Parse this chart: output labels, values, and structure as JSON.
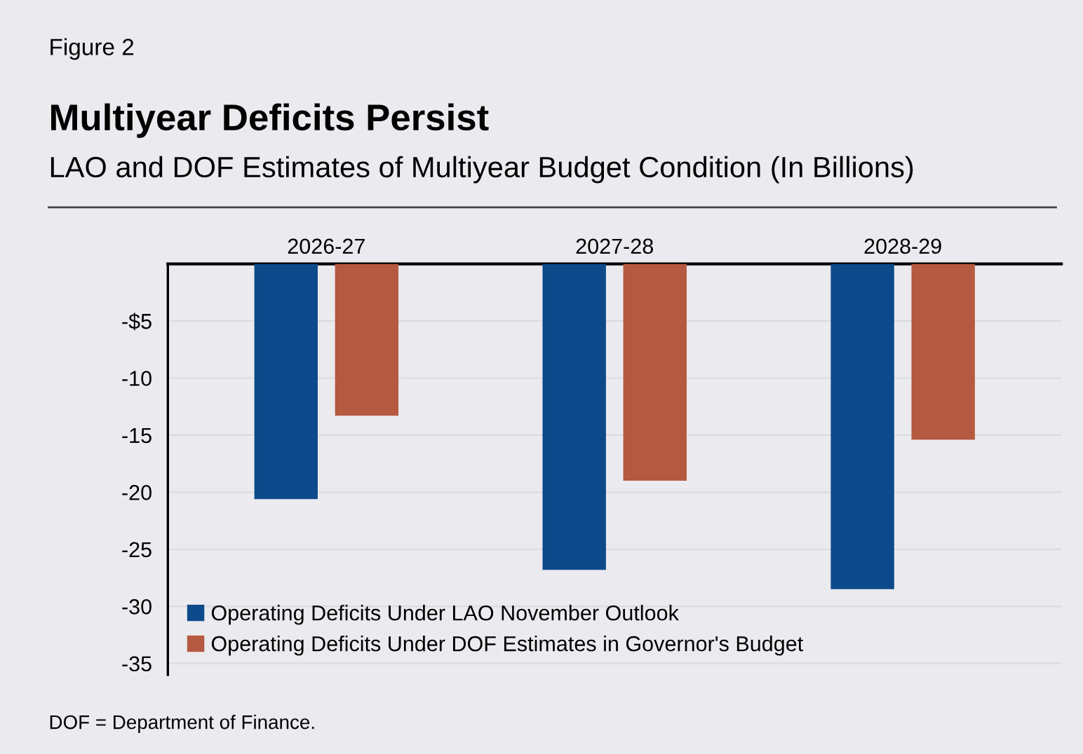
{
  "chart_data": {
    "type": "bar",
    "title": "Multiyear Deficits Persist",
    "subtitle": "LAO and DOF Estimates of Multiyear Budget Condition (In Billions)",
    "annotations": [
      "Figure 2",
      "DOF = Department of Finance."
    ],
    "categories": [
      "2026-27",
      "2027-28",
      "2028-29"
    ],
    "series": [
      {
        "name": "Operating Deficits Under LAO November Outlook",
        "color": "#0d4a8b",
        "values": [
          -20.6,
          -26.8,
          -28.5
        ]
      },
      {
        "name": "Operating Deficits Under DOF Estimates in Governor's Budget",
        "color": "#b55a40",
        "values": [
          -13.3,
          -19.0,
          -15.4
        ]
      }
    ],
    "ylim": [
      -36,
      0
    ],
    "yticks": [
      {
        "value": 0,
        "label": null
      },
      {
        "value": -5,
        "label": "-$5"
      },
      -10,
      -15,
      -20,
      -25,
      -30,
      -35
    ],
    "grid": "y",
    "legend": "bottom left"
  }
}
